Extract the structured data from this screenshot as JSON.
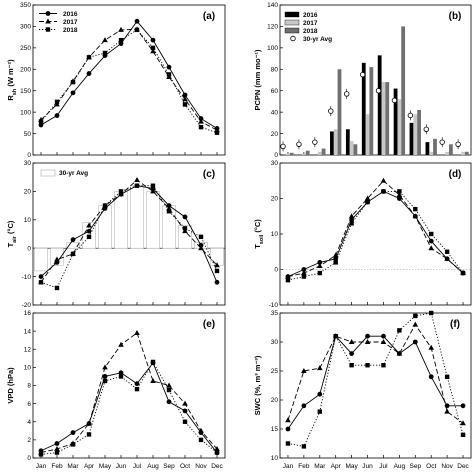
{
  "months": [
    "Jan",
    "Feb",
    "Mar",
    "Apr",
    "May",
    "Jun",
    "Jul",
    "Aug",
    "Sep",
    "Oct",
    "Nov",
    "Dec"
  ],
  "chart_data": [
    {
      "panel": "(a)",
      "type": "line",
      "ylabel": "R_sh (W m⁻²)",
      "ylim": [
        0,
        350
      ],
      "yticks": [
        0,
        50,
        100,
        150,
        200,
        250,
        300,
        350
      ],
      "legend": "top-left",
      "series": [
        {
          "name": "2016",
          "style": "solid-circle",
          "values": [
            70,
            92,
            145,
            190,
            232,
            260,
            312,
            268,
            205,
            140,
            85,
            62
          ]
        },
        {
          "name": "2017",
          "style": "dashed-triangle",
          "values": [
            82,
            118,
            172,
            228,
            268,
            292,
            293,
            242,
            182,
            130,
            78,
            58
          ]
        },
        {
          "name": "2018",
          "style": "dotted-square",
          "values": [
            78,
            124,
            170,
            228,
            238,
            268,
            292,
            250,
            188,
            118,
            65,
            52
          ]
        }
      ]
    },
    {
      "panel": "(b)",
      "type": "bar",
      "ylabel": "PCPN (mm mo⁻¹)",
      "ylim": [
        0,
        140
      ],
      "yticks": [
        0,
        20,
        40,
        60,
        80,
        100,
        120,
        140
      ],
      "legend": "top-left",
      "series": [
        {
          "name": "2016",
          "color": "#000000",
          "values": [
            0,
            0,
            0,
            22,
            24,
            86,
            93,
            62,
            30,
            12,
            0,
            0
          ]
        },
        {
          "name": "2017",
          "color": "#c8c8c8",
          "values": [
            1,
            1,
            3,
            24,
            13,
            38,
            68,
            52,
            38,
            3,
            3,
            3
          ]
        },
        {
          "name": "2018",
          "color": "#707070",
          "values": [
            2,
            4,
            6,
            80,
            10,
            82,
            68,
            120,
            42,
            15,
            10,
            3
          ]
        }
      ],
      "avg_name": "30-yr Avg",
      "avg_values": [
        8,
        10,
        12,
        41,
        57,
        75,
        60,
        51,
        37,
        24,
        12,
        10
      ]
    },
    {
      "panel": "(c)",
      "type": "line",
      "ylabel": "T_air (°C)",
      "ylim": [
        -20,
        30
      ],
      "yticks": [
        -20,
        -10,
        0,
        10,
        20,
        30
      ],
      "legend": "top-left",
      "avg_name": "30-yr Avg",
      "avg_values": [
        -8,
        -6,
        2,
        9,
        15,
        20,
        22,
        20,
        15,
        8,
        2,
        -6
      ],
      "series": [
        {
          "name": "2016",
          "style": "solid-circle",
          "values": [
            -10,
            -5,
            3,
            6,
            14,
            19,
            22,
            21,
            15,
            11,
            1,
            -12
          ]
        },
        {
          "name": "2017",
          "style": "dashed-triangle",
          "values": [
            -12,
            -4,
            -2,
            8,
            15,
            19,
            24,
            20,
            14,
            6,
            0,
            -6
          ]
        },
        {
          "name": "2018",
          "style": "dotted-square",
          "values": [
            -12,
            -14,
            -2,
            4,
            15,
            20,
            22,
            22,
            13,
            7,
            4,
            -8
          ]
        }
      ]
    },
    {
      "panel": "(d)",
      "type": "line",
      "ylabel": "T_soil (°C)",
      "ylim": [
        -10,
        30
      ],
      "yticks": [
        -10,
        0,
        10,
        20,
        30
      ],
      "series": [
        {
          "name": "2016",
          "style": "solid-circle",
          "values": [
            -2,
            0,
            2,
            3,
            14,
            19,
            22,
            20,
            15,
            8,
            3,
            -1
          ]
        },
        {
          "name": "2017",
          "style": "dashed-triangle",
          "values": [
            -2,
            -1,
            1,
            4,
            15,
            20,
            25,
            21,
            15,
            6,
            3,
            -1
          ]
        },
        {
          "name": "2018",
          "style": "dotted-square",
          "values": [
            -3,
            -2,
            -1,
            2,
            13,
            19,
            22,
            22,
            17,
            10,
            5,
            -1
          ]
        }
      ]
    },
    {
      "panel": "(e)",
      "type": "line",
      "ylabel": "VPD (hPa)",
      "ylim": [
        0,
        16
      ],
      "yticks": [
        0,
        2,
        4,
        6,
        8,
        10,
        12,
        14,
        16
      ],
      "series": [
        {
          "name": "2016",
          "style": "solid-circle",
          "values": [
            0.8,
            1.6,
            2.8,
            3.8,
            9.0,
            9.4,
            8.2,
            10.5,
            6.2,
            5.2,
            2.8,
            0.6
          ]
        },
        {
          "name": "2017",
          "style": "dashed-triangle",
          "values": [
            0.6,
            1.0,
            1.6,
            3.8,
            10.0,
            12.5,
            13.8,
            8.5,
            8.0,
            6.0,
            3.0,
            1.0
          ]
        },
        {
          "name": "2018",
          "style": "dotted-square",
          "values": [
            0.4,
            0.6,
            1.5,
            2.6,
            8.5,
            9.0,
            7.6,
            10.6,
            7.5,
            4.0,
            2.0,
            0.6
          ]
        }
      ]
    },
    {
      "panel": "(f)",
      "type": "line",
      "ylabel": "SWC (%, m³ m⁻³)",
      "ylim": [
        10,
        35
      ],
      "yticks": [
        10,
        15,
        20,
        25,
        30,
        35
      ],
      "series": [
        {
          "name": "2016",
          "style": "solid-circle",
          "values": [
            15,
            19,
            21,
            31,
            28,
            31,
            31,
            28,
            30,
            24,
            19,
            19
          ]
        },
        {
          "name": "2017",
          "style": "dashed-triangle",
          "values": [
            16.5,
            25,
            25.5,
            31,
            30,
            30,
            30,
            28,
            33,
            29,
            18,
            16
          ]
        },
        {
          "name": "2018",
          "style": "dotted-square",
          "values": [
            12.5,
            12,
            18,
            31,
            26,
            26,
            26,
            32,
            34.5,
            35,
            24,
            14
          ]
        }
      ]
    }
  ]
}
